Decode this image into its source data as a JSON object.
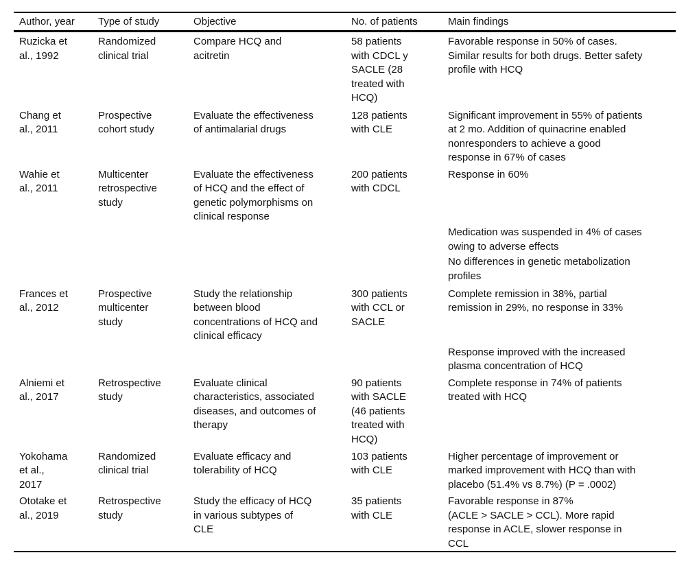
{
  "table": {
    "columns": [
      "Author, year",
      "Type of study",
      "Objective",
      "No. of patients",
      "Main findings"
    ],
    "rows": [
      {
        "author": "Ruzicka et\nal., 1992",
        "study_type": "Randomized\nclinical trial",
        "objective": "Compare HCQ and\nacitretin",
        "patients": "58 patients\nwith CDCL y\nSACLE (28\ntreated with\nHCQ)",
        "findings": [
          "Favorable response in 50% of cases.\nSimilar results for both drugs. Better safety\nprofile with HCQ"
        ]
      },
      {
        "author": "Chang et\nal., 2011",
        "study_type": "Prospective\ncohort study",
        "objective": "Evaluate the effectiveness\nof antimalarial drugs",
        "patients": "128 patients\nwith CLE",
        "findings": [
          "Significant improvement in 55% of patients\nat 2 mo. Addition of quinacrine enabled\nnonresponders to achieve a good\nresponse in 67% of cases"
        ]
      },
      {
        "author": "Wahie et\nal., 2011",
        "study_type": "Multicenter\nretrospective\nstudy",
        "objective": "Evaluate the effectiveness\nof HCQ and the effect of\ngenetic polymorphisms on\nclinical response",
        "patients": "200 patients\nwith CDCL",
        "findings": [
          "Response in 60%",
          "Medication was suspended in 4% of cases\nowing to adverse effects",
          "No differences in genetic metabolization\nprofiles"
        ]
      },
      {
        "author": "Frances et\nal., 2012",
        "study_type": "Prospective\nmulticenter\nstudy",
        "objective": "Study the relationship\nbetween blood\nconcentrations of HCQ and\nclinical efficacy",
        "patients": "300 patients\nwith CCL or\nSACLE",
        "findings": [
          "Complete remission in 38%, partial\nremission in 29%, no response in 33%",
          "Response improved with the increased\nplasma concentration of HCQ"
        ]
      },
      {
        "author": "Alniemi et\nal., 2017",
        "study_type": "Retrospective\nstudy",
        "objective": "Evaluate clinical\ncharacteristics, associated\ndiseases, and outcomes of\ntherapy",
        "patients": "90 patients\nwith SACLE\n(46 patients\ntreated with\nHCQ)",
        "findings": [
          "Complete response in 74% of patients\ntreated with HCQ"
        ]
      },
      {
        "author": "Yokohama\net al.,\n2017",
        "study_type": "Randomized\nclinical trial",
        "objective": "Evaluate efficacy and\ntolerability of HCQ",
        "patients": "103 patients\nwith CLE",
        "findings": [
          "Higher percentage of improvement or\nmarked improvement with HCQ than with\nplacebo (51.4% vs 8.7%) (P = .0002)"
        ]
      },
      {
        "author": "Ototake et\nal., 2019",
        "study_type": "Retrospective\nstudy",
        "objective": "Study the efficacy of HCQ\nin various subtypes of\nCLE",
        "patients": "35 patients\nwith CLE",
        "findings": [
          "Favorable response in 87%\n(ACLE > SACLE > CCL). More rapid\nresponse in ACLE, slower response in\nCCL"
        ]
      }
    ]
  }
}
